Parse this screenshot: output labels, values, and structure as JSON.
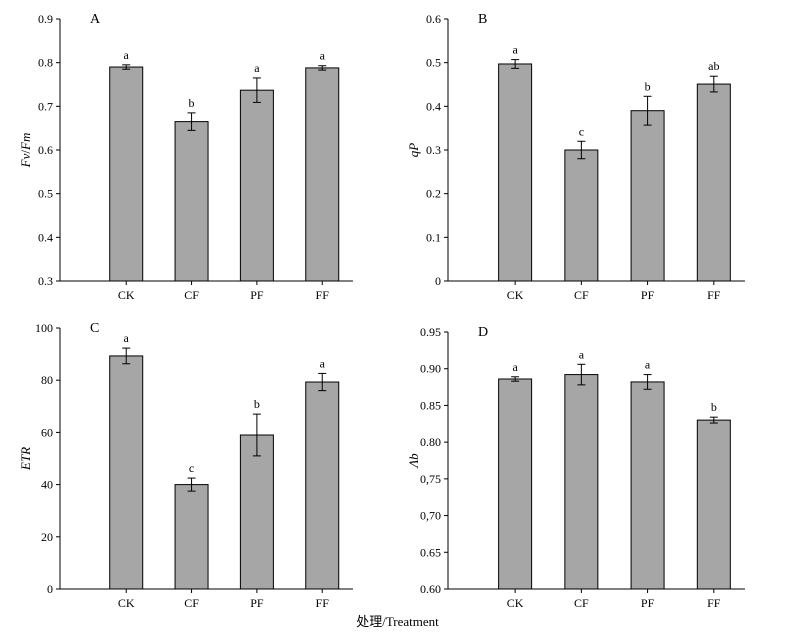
{
  "chart_data": [
    {
      "type": "bar",
      "panel": "A",
      "ylabel_main": "Fv",
      "ylabel_sep": "/",
      "ylabel_sub": "Fm",
      "categories": [
        "CK",
        "CF",
        "PF",
        "FF"
      ],
      "values": [
        0.79,
        0.665,
        0.737,
        0.788
      ],
      "errors": [
        0.005,
        0.02,
        0.028,
        0.005
      ],
      "letters": [
        "a",
        "b",
        "a",
        "a"
      ],
      "ylim": [
        0.3,
        0.9
      ],
      "yticks": [
        0.3,
        0.4,
        0.5,
        0.6,
        0.7,
        0.8,
        0.9
      ],
      "ytick_labels": [
        "0.3",
        "0.4",
        "0.5",
        "0.6",
        "0.7",
        "0.8",
        "0.9"
      ]
    },
    {
      "type": "bar",
      "panel": "B",
      "ylabel_main": "qP",
      "ylabel_sep": "",
      "ylabel_sub": "",
      "categories": [
        "CK",
        "CF",
        "PF",
        "FF"
      ],
      "values": [
        0.497,
        0.3,
        0.39,
        0.451
      ],
      "errors": [
        0.01,
        0.02,
        0.033,
        0.018
      ],
      "letters": [
        "a",
        "c",
        "b",
        "ab"
      ],
      "ylim": [
        0,
        0.6
      ],
      "yticks": [
        0,
        0.1,
        0.2,
        0.3,
        0.4,
        0.5,
        0.6
      ],
      "ytick_labels": [
        "0",
        "0.1",
        "0.2",
        "0.3",
        "0.4",
        "0.5",
        "0.6"
      ]
    },
    {
      "type": "bar",
      "panel": "C",
      "ylabel_main": "ETR",
      "ylabel_sep": "",
      "ylabel_sub": "",
      "categories": [
        "CK",
        "CF",
        "PF",
        "FF"
      ],
      "values": [
        89.3,
        40.0,
        59.0,
        79.3
      ],
      "errors": [
        3.0,
        2.5,
        8.0,
        3.3
      ],
      "letters": [
        "a",
        "c",
        "b",
        "a"
      ],
      "ylim": [
        0,
        100
      ],
      "yticks": [
        0,
        20,
        40,
        60,
        80,
        100
      ],
      "ytick_labels": [
        "0",
        "20",
        "40",
        "60",
        "80",
        "100"
      ]
    },
    {
      "type": "bar",
      "panel": "D",
      "ylabel_main": "Λ",
      "ylabel_sep": "",
      "ylabel_sub": "b",
      "categories": [
        "CK",
        "CF",
        "PF",
        "FF"
      ],
      "values": [
        0.886,
        0.892,
        0.882,
        0.83
      ],
      "errors": [
        0.003,
        0.014,
        0.01,
        0.004
      ],
      "letters": [
        "a",
        "a",
        "a",
        "b"
      ],
      "ylim": [
        0.6,
        0.95
      ],
      "yticks": [
        0.6,
        0.65,
        0.7,
        0.75,
        0.8,
        0.85,
        0.9,
        0.95
      ],
      "ytick_labels": [
        "0.60",
        "0.65",
        "0,70",
        "0,75",
        "0.80",
        "0.85",
        "0.90",
        "0.95"
      ]
    }
  ],
  "xlabel": "处理/Treatment",
  "colors": {
    "bar": "#a6a6a6",
    "stroke": "#000000"
  }
}
